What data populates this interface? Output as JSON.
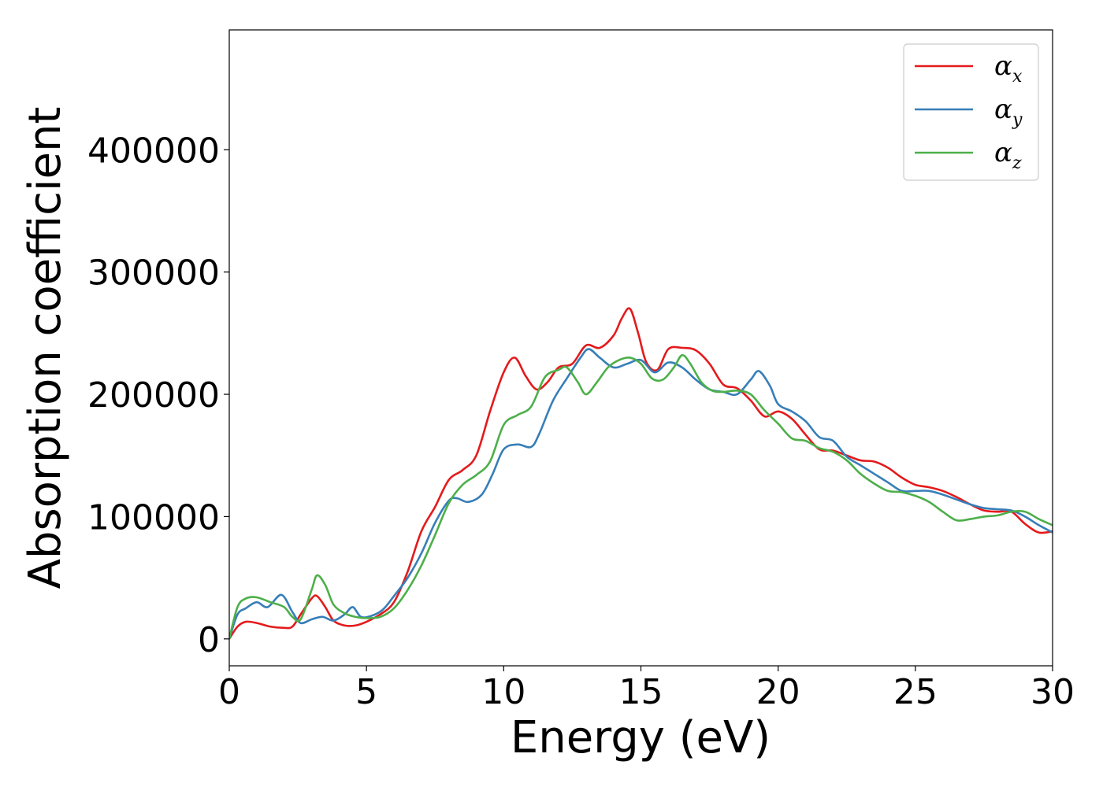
{
  "chart_data": {
    "type": "line",
    "xlabel": "Energy (eV)",
    "ylabel": "Absorption coefficient",
    "xlim": [
      0,
      30
    ],
    "ylim": [
      -22000,
      498000
    ],
    "x_ticks": [
      "0",
      "5",
      "10",
      "15",
      "20",
      "25",
      "30"
    ],
    "y_ticks": [
      "0",
      "100000",
      "200000",
      "300000",
      "400000"
    ],
    "grid": false,
    "legend_position": "top-right",
    "series": [
      {
        "name": "α",
        "sub": "x",
        "color": "#e41a1c",
        "x": [
          0,
          0.3,
          0.6,
          1.0,
          1.5,
          2.0,
          2.3,
          2.6,
          3.0,
          3.2,
          3.5,
          3.8,
          4.2,
          4.6,
          5.0,
          5.5,
          6.0,
          6.5,
          7.0,
          7.5,
          8.0,
          8.5,
          9.0,
          9.5,
          10.0,
          10.4,
          10.8,
          11.2,
          11.6,
          12.0,
          12.5,
          13.0,
          13.5,
          14.0,
          14.3,
          14.6,
          14.9,
          15.2,
          15.6,
          16.0,
          16.5,
          17.0,
          17.5,
          18.0,
          18.5,
          19.0,
          19.5,
          20.0,
          20.5,
          21.0,
          21.5,
          22.0,
          22.5,
          23.0,
          23.5,
          24.0,
          24.5,
          25.0,
          25.5,
          26.0,
          26.5,
          27.0,
          27.5,
          28.0,
          28.5,
          29.0,
          29.5,
          30.0
        ],
        "y": [
          0,
          10000,
          14000,
          13000,
          10000,
          9000,
          10000,
          20000,
          33000,
          35000,
          26000,
          15000,
          11000,
          11000,
          14000,
          20000,
          30000,
          55000,
          88000,
          108000,
          130000,
          138000,
          150000,
          186000,
          218000,
          230000,
          215000,
          204000,
          210000,
          222000,
          225000,
          240000,
          238000,
          248000,
          262000,
          270000,
          250000,
          226000,
          220000,
          237000,
          238000,
          236000,
          225000,
          208000,
          205000,
          195000,
          182000,
          186000,
          180000,
          167000,
          155000,
          154000,
          150000,
          146000,
          145000,
          140000,
          132000,
          126000,
          124000,
          121000,
          116000,
          110000,
          105000,
          104000,
          104000,
          94000,
          87000,
          88000
        ]
      },
      {
        "name": "α",
        "sub": "y",
        "color": "#377eb8",
        "x": [
          0,
          0.3,
          0.6,
          1.0,
          1.4,
          1.9,
          2.3,
          2.6,
          3.0,
          3.4,
          3.8,
          4.2,
          4.5,
          4.8,
          5.2,
          5.6,
          6.0,
          6.5,
          7.0,
          7.5,
          8.0,
          8.3,
          8.7,
          9.2,
          9.6,
          10.0,
          10.5,
          11.0,
          11.3,
          11.8,
          12.3,
          12.8,
          13.1,
          13.5,
          14.0,
          14.5,
          15.0,
          15.5,
          16.0,
          16.5,
          17.0,
          17.5,
          18.0,
          18.5,
          19.0,
          19.3,
          19.7,
          20.0,
          20.5,
          21.0,
          21.5,
          22.0,
          22.5,
          23.0,
          23.5,
          24.0,
          24.5,
          25.0,
          25.5,
          26.0,
          26.5,
          27.0,
          27.5,
          28.0,
          28.5,
          29.0,
          29.5,
          30.0
        ],
        "y": [
          0,
          20000,
          25000,
          30000,
          26000,
          36000,
          22000,
          13000,
          16000,
          18000,
          15000,
          20000,
          26000,
          18000,
          19000,
          24000,
          35000,
          50000,
          70000,
          95000,
          113000,
          115000,
          112000,
          118000,
          135000,
          155000,
          159000,
          157000,
          168000,
          195000,
          213000,
          230000,
          237000,
          230000,
          222000,
          225000,
          228000,
          218000,
          226000,
          222000,
          212000,
          204000,
          202000,
          200000,
          212000,
          219000,
          207000,
          192000,
          186000,
          178000,
          165000,
          162000,
          149000,
          142000,
          135000,
          128000,
          121000,
          121000,
          121000,
          118000,
          114000,
          110000,
          107000,
          106000,
          105000,
          100000,
          93000,
          87000
        ]
      },
      {
        "name": "α",
        "sub": "z",
        "color": "#4daf4a",
        "x": [
          0,
          0.3,
          0.6,
          1.0,
          1.5,
          2.0,
          2.3,
          2.6,
          3.0,
          3.2,
          3.5,
          3.8,
          4.2,
          4.6,
          5.0,
          5.5,
          6.0,
          6.5,
          7.0,
          7.5,
          8.0,
          8.5,
          9.0,
          9.5,
          10.0,
          10.5,
          11.0,
          11.5,
          12.0,
          12.3,
          12.7,
          13.0,
          13.4,
          13.8,
          14.2,
          14.6,
          15.0,
          15.4,
          15.8,
          16.2,
          16.5,
          16.8,
          17.2,
          17.6,
          18.0,
          18.5,
          19.0,
          19.5,
          20.0,
          20.5,
          21.0,
          21.5,
          22.0,
          22.5,
          23.0,
          23.5,
          24.0,
          24.5,
          25.0,
          25.5,
          26.0,
          26.5,
          27.0,
          27.5,
          28.0,
          28.5,
          29.0,
          29.5,
          30.0
        ],
        "y": [
          0,
          26000,
          33000,
          34000,
          30000,
          26000,
          18000,
          16000,
          40000,
          52000,
          44000,
          28000,
          21000,
          18000,
          17000,
          18000,
          25000,
          40000,
          60000,
          85000,
          111000,
          126000,
          134000,
          145000,
          175000,
          183000,
          190000,
          214000,
          220000,
          222000,
          210000,
          200000,
          210000,
          222000,
          228000,
          230000,
          225000,
          213000,
          212000,
          222000,
          232000,
          225000,
          210000,
          203000,
          202000,
          203000,
          200000,
          187000,
          176000,
          164000,
          162000,
          156000,
          153000,
          146000,
          135000,
          127000,
          121000,
          120000,
          117000,
          112000,
          104000,
          97000,
          98000,
          100000,
          101000,
          104000,
          104000,
          98000,
          93000
        ]
      }
    ]
  }
}
